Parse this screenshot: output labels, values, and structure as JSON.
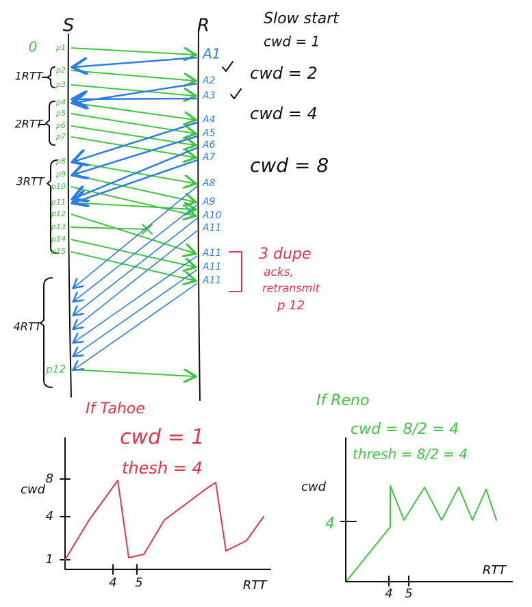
{
  "sender": "S",
  "receiver": "R",
  "slow_start": {
    "title": "Slow start",
    "cwnd": [
      "cwd = 1",
      "cwd = 2",
      "cwd = 4",
      "cwd = 8"
    ]
  },
  "rtt_labels": [
    "0",
    "1RTT",
    "2RTT",
    "3RTT",
    "4RTT"
  ],
  "packets": [
    "p1",
    "p2",
    "p3",
    "p4",
    "p5",
    "p6",
    "p7",
    "p8",
    "p9",
    "p10",
    "p11",
    "p12",
    "p13",
    "p14",
    "p15",
    "p12"
  ],
  "acks": [
    "A1",
    "A2",
    "A3",
    "A4",
    "A5",
    "A6",
    "A7",
    "A8",
    "A9",
    "A10",
    "A11",
    "A11",
    "A11",
    "A11"
  ],
  "dup_note": [
    "3 dupe",
    "acks,",
    "retransmit",
    "p 12"
  ],
  "tahoe": {
    "title": "If Tahoe",
    "cwd": "cwd = 1",
    "thresh": "thesh = 4",
    "graph": {
      "y_label": "cwd",
      "y_ticks": [
        "8",
        "4",
        "1"
      ],
      "x_ticks": [
        "4",
        "5"
      ],
      "x_label": "RTT"
    }
  },
  "reno": {
    "title": "If Reno",
    "cwd": "cwd = 8/2 = 4",
    "thresh": "thresh = 8/2 = 4",
    "graph": {
      "y_label": "cwd",
      "y_ticks": [
        "4"
      ],
      "x_ticks": [
        "4",
        "5"
      ],
      "x_label": "RTT"
    }
  }
}
